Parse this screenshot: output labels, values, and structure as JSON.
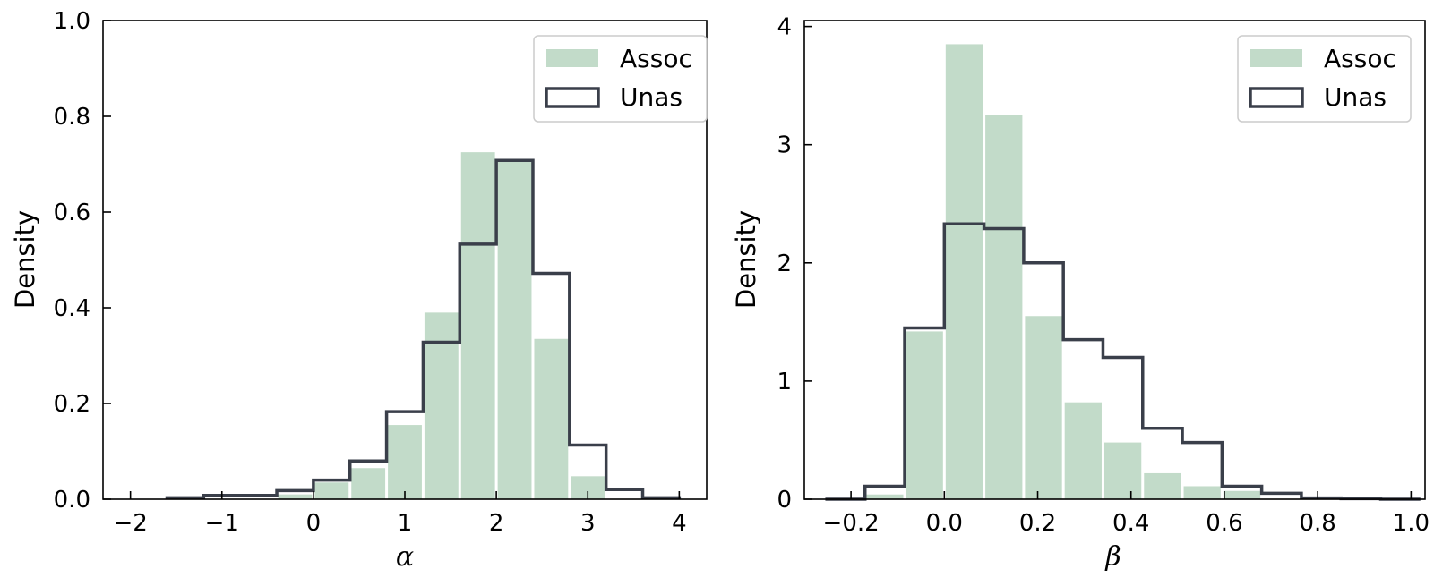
{
  "colors": {
    "assoc_fill": "#c2dbc9",
    "unas_stroke": "#3a3f4a",
    "axis": "#000000"
  },
  "chart_data": [
    {
      "type": "histogram",
      "xlabel": "α",
      "ylabel": "Density",
      "xlim": [
        -2.3,
        4.3
      ],
      "ylim": [
        0,
        1.0
      ],
      "xticks": [
        -2,
        -1,
        0,
        1,
        2,
        3,
        4
      ],
      "xtick_labels": [
        "−2",
        "−1",
        "0",
        "1",
        "2",
        "3",
        "4"
      ],
      "yticks": [
        0,
        0.2,
        0.4,
        0.6,
        0.8,
        1.0
      ],
      "ytick_labels": [
        "0.0",
        "0.2",
        "0.4",
        "0.6",
        "0.8",
        "1.0"
      ],
      "legend": {
        "position": "top-right",
        "entries": [
          "Assoc",
          "Unas"
        ]
      },
      "series": [
        {
          "name": "Assoc",
          "style": "filled-bars",
          "edges": [
            -0.4,
            0.0,
            0.4,
            0.8,
            1.2,
            1.6,
            2.0,
            2.4,
            2.8,
            3.2
          ],
          "values": [
            0.01,
            0.035,
            0.065,
            0.155,
            0.39,
            0.725,
            0.705,
            0.335,
            0.048
          ]
        },
        {
          "name": "Unas",
          "style": "step-outline",
          "edges": [
            -1.6,
            -1.2,
            -0.8,
            -0.4,
            0.0,
            0.4,
            0.8,
            1.2,
            1.6,
            2.0,
            2.4,
            2.8,
            3.2,
            3.6,
            4.0
          ],
          "values": [
            0.003,
            0.008,
            0.008,
            0.018,
            0.04,
            0.08,
            0.183,
            0.328,
            0.533,
            0.708,
            0.472,
            0.113,
            0.02,
            0.003
          ]
        }
      ]
    },
    {
      "type": "histogram",
      "xlabel": "β",
      "ylabel": "Density",
      "xlim": [
        -0.3,
        1.03
      ],
      "ylim": [
        0,
        4.05
      ],
      "xticks": [
        -0.2,
        0.0,
        0.2,
        0.4,
        0.6,
        0.8,
        1.0
      ],
      "xtick_labels": [
        "−0.2",
        "0.0",
        "0.2",
        "0.4",
        "0.6",
        "0.8",
        "1.0"
      ],
      "yticks": [
        0,
        1,
        2,
        3,
        4
      ],
      "ytick_labels": [
        "0",
        "1",
        "2",
        "3",
        "4"
      ],
      "legend": {
        "position": "top-right",
        "entries": [
          "Assoc",
          "Unas"
        ]
      },
      "series": [
        {
          "name": "Assoc",
          "style": "filled-bars",
          "edges": [
            -0.17,
            -0.085,
            0.0,
            0.085,
            0.17,
            0.255,
            0.34,
            0.425,
            0.51,
            0.595,
            0.68
          ],
          "values": [
            0.04,
            1.42,
            3.85,
            3.25,
            1.55,
            0.82,
            0.48,
            0.22,
            0.11,
            0.07
          ]
        },
        {
          "name": "Unas",
          "style": "step-outline",
          "edges": [
            -0.255,
            -0.17,
            -0.085,
            0.0,
            0.085,
            0.17,
            0.255,
            0.34,
            0.425,
            0.51,
            0.595,
            0.68,
            0.765,
            0.85,
            0.935,
            1.02
          ],
          "values": [
            0.0,
            0.11,
            1.45,
            2.33,
            2.29,
            2.0,
            1.35,
            1.2,
            0.6,
            0.48,
            0.11,
            0.05,
            0.01,
            0.005,
            0.0
          ]
        }
      ]
    }
  ]
}
